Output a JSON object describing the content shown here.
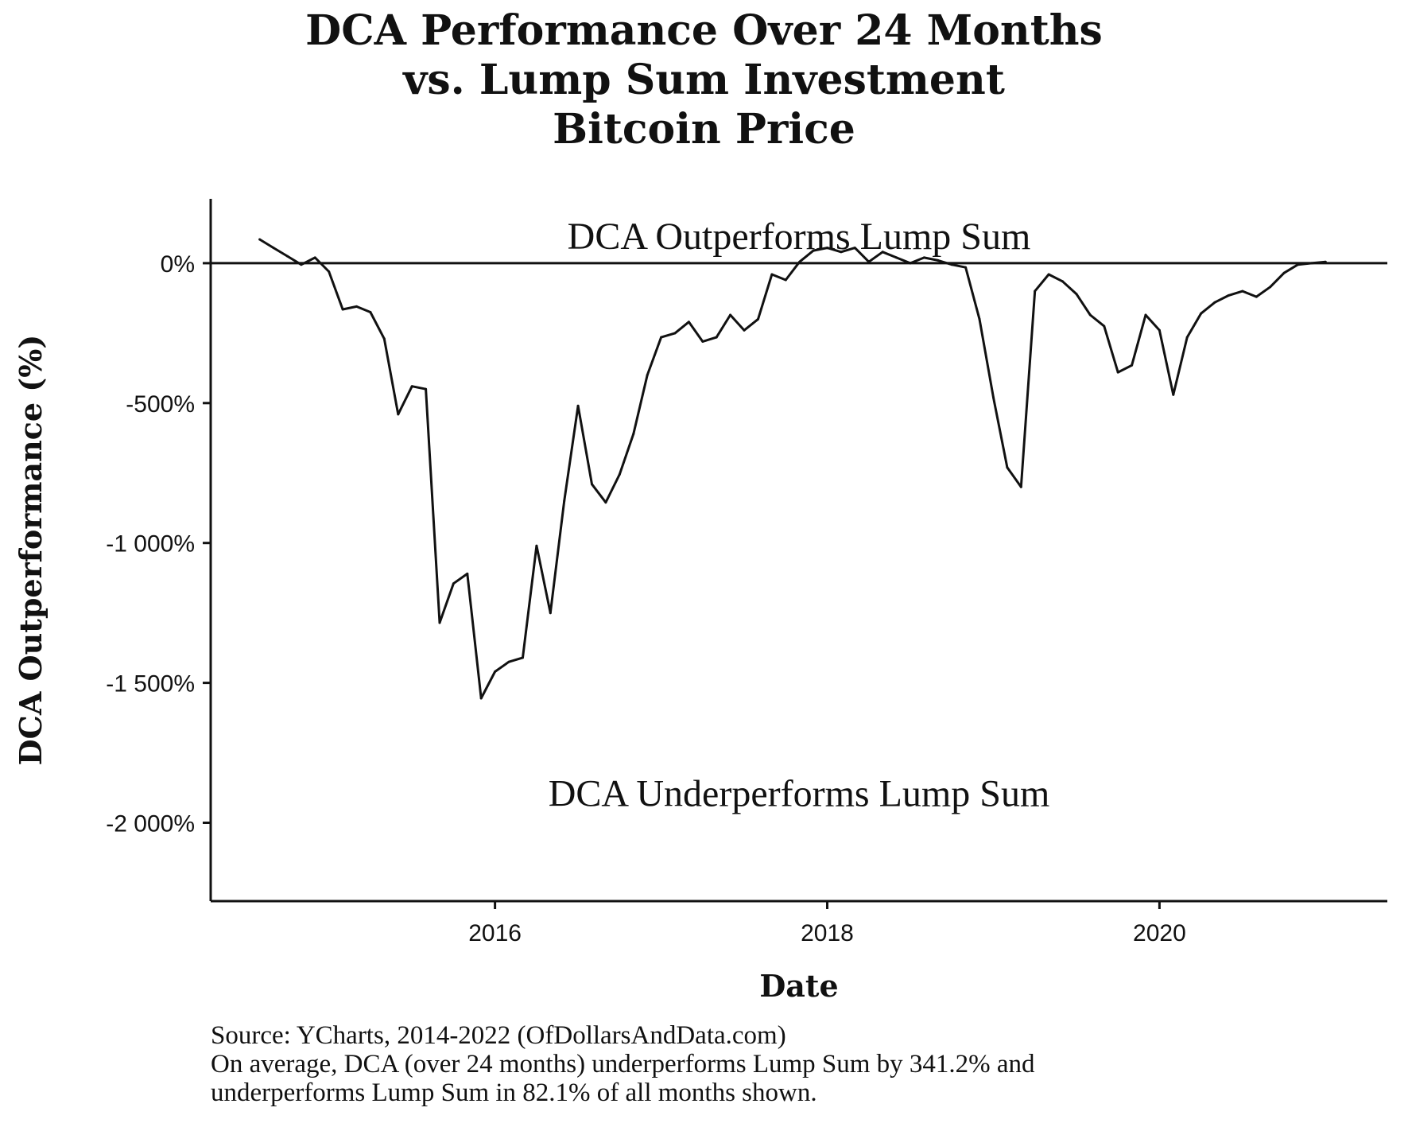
{
  "chart_data": {
    "type": "line",
    "title_lines": [
      "DCA Performance Over 24 Months",
      "vs. Lump Sum Investment",
      "Bitcoin Price"
    ],
    "xlabel": "Date",
    "ylabel": "DCA Outperformance (%)",
    "x_ticks": [
      "2016",
      "2018",
      "2020"
    ],
    "y_ticks": [
      {
        "value": 0,
        "label": "0%"
      },
      {
        "value": -500,
        "label": "-500%"
      },
      {
        "value": -1000,
        "label": "-1 000%"
      },
      {
        "value": -1500,
        "label": "-1 500%"
      },
      {
        "value": -2000,
        "label": "-2 000%"
      }
    ],
    "xlim": [
      "2014-04-15",
      "2021-05-15"
    ],
    "ylim": [
      -2280,
      230
    ],
    "reference_line": 0,
    "annotations": {
      "above": "DCA Outperforms Lump Sum",
      "below": "DCA Underperforms Lump Sum"
    },
    "series": [
      {
        "dates": [
          "2014-08",
          "2014-09",
          "2014-10",
          "2014-11",
          "2014-12",
          "2015-01",
          "2015-02",
          "2015-03",
          "2015-04",
          "2015-05",
          "2015-06",
          "2015-07",
          "2015-08",
          "2015-09",
          "2015-10",
          "2015-11",
          "2015-12",
          "2016-01",
          "2016-02",
          "2016-03",
          "2016-04",
          "2016-05",
          "2016-06",
          "2016-07",
          "2016-08",
          "2016-09",
          "2016-10",
          "2016-11",
          "2016-12",
          "2017-01",
          "2017-02",
          "2017-03",
          "2017-04",
          "2017-05",
          "2017-06",
          "2017-07",
          "2017-08",
          "2017-09",
          "2017-10",
          "2017-11",
          "2017-12",
          "2018-01",
          "2018-02",
          "2018-03",
          "2018-04",
          "2018-05",
          "2018-06",
          "2018-07",
          "2018-08",
          "2018-09",
          "2018-10",
          "2018-11",
          "2018-12",
          "2019-01",
          "2019-02",
          "2019-03",
          "2019-04",
          "2019-05",
          "2019-06",
          "2019-07",
          "2019-08",
          "2019-09",
          "2019-10",
          "2019-11",
          "2019-12",
          "2020-01",
          "2020-02",
          "2020-03",
          "2020-04",
          "2020-05",
          "2020-06",
          "2020-07",
          "2020-08",
          "2020-09",
          "2020-10",
          "2020-11",
          "2020-12",
          "2021-01"
        ],
        "values": [
          85,
          55,
          25,
          -5,
          20,
          -30,
          -165,
          -155,
          -175,
          -270,
          -540,
          -440,
          -450,
          -1285,
          -1145,
          -1110,
          -1555,
          -1460,
          -1425,
          -1410,
          -1010,
          -1250,
          -850,
          -510,
          -790,
          -855,
          -755,
          -610,
          -400,
          -265,
          -250,
          -210,
          -280,
          -265,
          -185,
          -240,
          -200,
          -40,
          -60,
          5,
          45,
          55,
          40,
          55,
          5,
          40,
          20,
          0,
          20,
          10,
          -5,
          -15,
          -200,
          -480,
          -730,
          -800,
          -100,
          -40,
          -65,
          -110,
          -185,
          -225,
          -390,
          -365,
          -185,
          -240,
          -470,
          -265,
          -180,
          -140,
          -115,
          -100,
          -120,
          -85,
          -35,
          -5,
          0,
          5
        ]
      }
    ],
    "caption_lines": [
      "Source:  YCharts, 2014-2022 (OfDollarsAndData.com)",
      "On average, DCA (over 24 months) underperforms Lump Sum by 341.2% and",
      "underperforms Lump Sum in 82.1% of all months shown."
    ]
  }
}
